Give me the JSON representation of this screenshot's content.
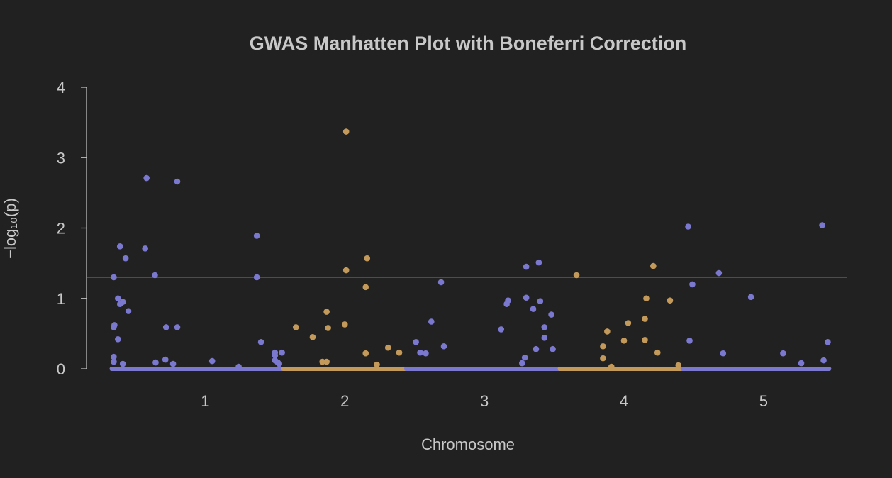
{
  "chart_data": {
    "type": "scatter",
    "title": "GWAS Manhatten Plot with Boneferri Correction",
    "xlabel": "Chromosome",
    "ylabel": "−log₁₀(p)",
    "ylim": [
      0,
      4
    ],
    "xlim": [
      0.15,
      5.6
    ],
    "yticks": [
      "0",
      "1",
      "2",
      "3",
      "4"
    ],
    "xticks": [
      {
        "value": 1,
        "label": "1"
      },
      {
        "value": 2,
        "label": "2"
      },
      {
        "value": 3,
        "label": "3"
      },
      {
        "value": 4,
        "label": "4"
      },
      {
        "value": 5,
        "label": "5"
      }
    ],
    "threshold": 1.3,
    "colors": {
      "background": "#212121",
      "text": "#c8c8c8",
      "odd_chromosome": "#7b78d0",
      "even_chromosome": "#c49a5a",
      "threshold_line": "#4a4aa8"
    },
    "baseline_segments": [
      {
        "x0": 0.33,
        "x1": 1.56,
        "color": "odd"
      },
      {
        "x0": 1.56,
        "x1": 2.44,
        "color": "even"
      },
      {
        "x0": 2.44,
        "x1": 3.54,
        "color": "odd"
      },
      {
        "x0": 3.54,
        "x1": 4.42,
        "color": "even"
      },
      {
        "x0": 4.42,
        "x1": 5.47,
        "color": "odd"
      }
    ],
    "series": [
      {
        "color": "odd",
        "points": [
          [
            0.345,
            1.3
          ],
          [
            0.35,
            0.62
          ],
          [
            0.345,
            0.59
          ],
          [
            0.345,
            0.17
          ],
          [
            0.345,
            0.1
          ],
          [
            0.375,
            1.0
          ],
          [
            0.375,
            0.42
          ],
          [
            0.39,
            1.74
          ],
          [
            0.39,
            0.92
          ],
          [
            0.41,
            0.95
          ],
          [
            0.41,
            0.07
          ],
          [
            0.43,
            1.57
          ],
          [
            0.45,
            0.82
          ],
          [
            0.58,
            2.71
          ],
          [
            0.57,
            1.71
          ],
          [
            0.64,
            1.33
          ],
          [
            0.645,
            0.09
          ],
          [
            0.72,
            0.59
          ],
          [
            0.715,
            0.13
          ],
          [
            0.77,
            0.07
          ],
          [
            0.8,
            2.66
          ],
          [
            0.8,
            0.59
          ],
          [
            1.05,
            0.11
          ],
          [
            1.24,
            0.03
          ],
          [
            1.37,
            1.89
          ],
          [
            1.37,
            1.3
          ],
          [
            1.4,
            0.38
          ],
          [
            1.5,
            0.23
          ],
          [
            1.5,
            0.19
          ],
          [
            1.5,
            0.12
          ],
          [
            1.52,
            0.09
          ],
          [
            1.53,
            0.07
          ],
          [
            1.55,
            0.23
          ],
          [
            2.51,
            0.38
          ],
          [
            2.54,
            0.23
          ],
          [
            2.58,
            0.22
          ],
          [
            2.62,
            0.67
          ],
          [
            2.69,
            1.23
          ],
          [
            2.71,
            0.32
          ],
          [
            3.12,
            0.56
          ],
          [
            3.16,
            0.92
          ],
          [
            3.17,
            0.97
          ],
          [
            3.27,
            0.08
          ],
          [
            3.29,
            0.16
          ],
          [
            3.3,
            1.01
          ],
          [
            3.3,
            1.45
          ],
          [
            3.35,
            0.85
          ],
          [
            3.37,
            0.28
          ],
          [
            3.39,
            1.51
          ],
          [
            3.4,
            0.96
          ],
          [
            3.43,
            0.59
          ],
          [
            3.43,
            0.44
          ],
          [
            3.48,
            0.77
          ],
          [
            3.49,
            0.28
          ],
          [
            4.46,
            2.02
          ],
          [
            4.47,
            0.4
          ],
          [
            4.49,
            1.2
          ],
          [
            4.68,
            1.36
          ],
          [
            4.71,
            0.22
          ],
          [
            4.91,
            1.02
          ],
          [
            5.14,
            0.22
          ],
          [
            5.27,
            0.08
          ],
          [
            5.42,
            2.04
          ],
          [
            5.43,
            0.12
          ],
          [
            5.46,
            0.38
          ]
        ]
      },
      {
        "color": "even",
        "points": [
          [
            1.65,
            0.59
          ],
          [
            1.77,
            0.45
          ],
          [
            1.84,
            0.1
          ],
          [
            1.87,
            0.81
          ],
          [
            1.88,
            0.58
          ],
          [
            1.87,
            0.1
          ],
          [
            2.0,
            0.63
          ],
          [
            2.01,
            3.37
          ],
          [
            2.01,
            1.4
          ],
          [
            2.15,
            1.16
          ],
          [
            2.16,
            1.57
          ],
          [
            2.15,
            0.22
          ],
          [
            2.23,
            0.06
          ],
          [
            2.31,
            0.3
          ],
          [
            2.39,
            0.23
          ],
          [
            3.66,
            1.33
          ],
          [
            3.85,
            0.32
          ],
          [
            3.85,
            0.15
          ],
          [
            3.88,
            0.53
          ],
          [
            3.91,
            0.03
          ],
          [
            4.0,
            0.4
          ],
          [
            4.03,
            0.65
          ],
          [
            4.15,
            0.71
          ],
          [
            4.15,
            0.41
          ],
          [
            4.16,
            1.0
          ],
          [
            4.21,
            1.46
          ],
          [
            4.24,
            0.23
          ],
          [
            4.33,
            0.97
          ],
          [
            4.39,
            0.05
          ]
        ]
      }
    ]
  }
}
